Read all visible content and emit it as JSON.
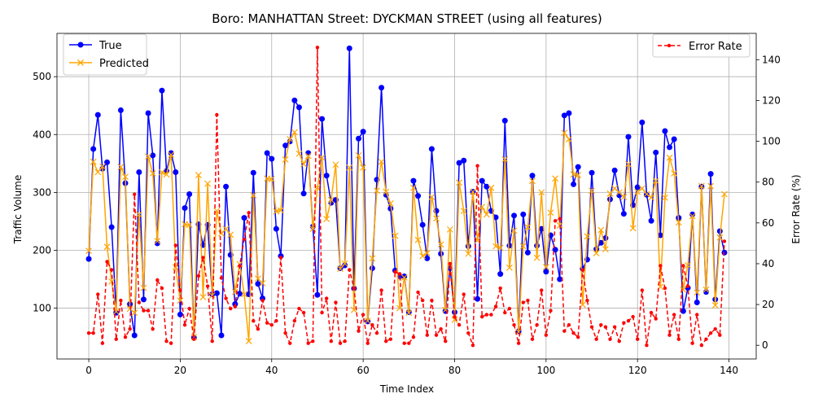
{
  "chart_data": {
    "type": "line",
    "title": "Boro: MANHATTAN Street: DYCKMAN STREET (using all features)",
    "xlabel": "Time Index",
    "ylabel": "Traffic Volume",
    "y2label": "Error Rate (%)",
    "xlim": [
      -6.95,
      145.95
    ],
    "ylim": [
      12.2,
      574.8
    ],
    "y2lim": [
      -6.7,
      152.9
    ],
    "xticks": [
      0,
      20,
      40,
      60,
      80,
      100,
      120,
      140
    ],
    "yticks": [
      100,
      200,
      300,
      400,
      500
    ],
    "y2ticks": [
      0,
      20,
      40,
      60,
      80,
      100,
      120,
      140
    ],
    "grid": true,
    "colors": {
      "true": "#0000ff",
      "predicted": "#ffa500",
      "error": "#ff0000"
    },
    "legend_left": {
      "placement": "upper-left",
      "entries": [
        "True",
        "Predicted"
      ]
    },
    "legend_right": {
      "placement": "upper-right",
      "entries": [
        "Error Rate"
      ]
    },
    "series": [
      {
        "name": "True",
        "axis": "left",
        "style": "solid-circle",
        "values": [
          185,
          375,
          434,
          341,
          352,
          240,
          92,
          442,
          316,
          107,
          53,
          335,
          115,
          437,
          364,
          212,
          476,
          337,
          368,
          335,
          89,
          273,
          297,
          49,
          245,
          209,
          244,
          124,
          126,
          53,
          310,
          192,
          107,
          125,
          256,
          124,
          334,
          142,
          117,
          368,
          358,
          237,
          190,
          381,
          388,
          459,
          447,
          298,
          368,
          241,
          123,
          427,
          329,
          282,
          287,
          169,
          174,
          549,
          134,
          393,
          405,
          77,
          169,
          322,
          481,
          296,
          272,
          165,
          155,
          155,
          93,
          320,
          294,
          244,
          186,
          375,
          268,
          194,
          95,
          169,
          93,
          351,
          355,
          207,
          301,
          116,
          320,
          310,
          268,
          257,
          159,
          424,
          208,
          260,
          60,
          262,
          196,
          329,
          208,
          237,
          163,
          226,
          201,
          150,
          433,
          437,
          314,
          344,
          168,
          184,
          334,
          202,
          213,
          221,
          288,
          338,
          295,
          263,
          396,
          278,
          309,
          421,
          296,
          251,
          369,
          226,
          406,
          378,
          392,
          256,
          95,
          135,
          262,
          110,
          310,
          128,
          332,
          115,
          233,
          196
        ]
      },
      {
        "name": "Predicted",
        "axis": "left",
        "style": "solid-x",
        "values": [
          199,
          353,
          335,
          345,
          206,
          146,
          94,
          344,
          327,
          99,
          92,
          262,
          135,
          362,
          333,
          216,
          335,
          331,
          365,
          171,
          113,
          245,
          244,
          50,
          330,
          119,
          315,
          122,
          268,
          229,
          237,
          227,
          128,
          176,
          124,
          43,
          295,
          151,
          143,
          324,
          323,
          267,
          269,
          357,
          392,
          404,
          367,
          349,
          363,
          237,
          308,
          360,
          254,
          287,
          348,
          168,
          177,
          343,
          97,
          364,
          343,
          78,
          186,
          303,
          353,
          301,
          281,
          225,
          100,
          153,
          92,
          308,
          218,
          190,
          195,
          292,
          255,
          210,
          97,
          236,
          80,
          317,
          268,
          194,
          301,
          217,
          275,
          262,
          308,
          207,
          204,
          357,
          170,
          234,
          59,
          207,
          240,
          320,
          187,
          300,
          171,
          265,
          324,
          243,
          403,
          392,
          331,
          330,
          106,
          224,
          303,
          195,
          235,
          202,
          298,
          307,
          300,
          292,
          349,
          238,
          301,
          307,
          297,
          291,
          320,
          137,
          291,
          360,
          333,
          248,
          132,
          174,
          259,
          127,
          311,
          132,
          311,
          105,
          222,
          297
        ]
      },
      {
        "name": "Error Rate",
        "axis": "right",
        "style": "dashed-dot",
        "values": [
          6,
          6,
          25,
          1,
          41,
          37,
          3,
          22,
          4,
          8,
          74,
          21,
          17,
          17,
          8,
          32,
          28,
          2,
          1,
          49,
          27,
          10,
          18,
          3,
          34,
          43,
          29,
          2,
          113,
          33,
          23,
          18,
          19,
          39,
          52,
          65,
          12,
          8,
          22,
          11,
          10,
          12,
          43,
          6,
          1,
          12,
          18,
          16,
          1,
          2,
          146,
          16,
          23,
          2,
          21,
          1,
          2,
          37,
          28,
          7,
          15,
          1,
          10,
          6,
          27,
          2,
          3,
          36,
          35,
          1,
          1,
          4,
          26,
          22,
          5,
          22,
          5,
          8,
          2,
          40,
          14,
          10,
          25,
          6,
          0,
          88,
          14,
          15,
          15,
          19,
          28,
          16,
          18,
          10,
          1,
          21,
          22,
          3,
          10,
          27,
          5,
          17,
          61,
          62,
          7,
          10,
          6,
          4,
          37,
          22,
          9,
          3,
          10,
          9,
          3,
          9,
          2,
          11,
          12,
          14,
          3,
          27,
          0,
          16,
          13,
          39,
          28,
          5,
          15,
          3,
          39,
          29,
          1,
          15,
          0,
          3,
          6,
          8,
          5,
          51
        ]
      }
    ]
  }
}
